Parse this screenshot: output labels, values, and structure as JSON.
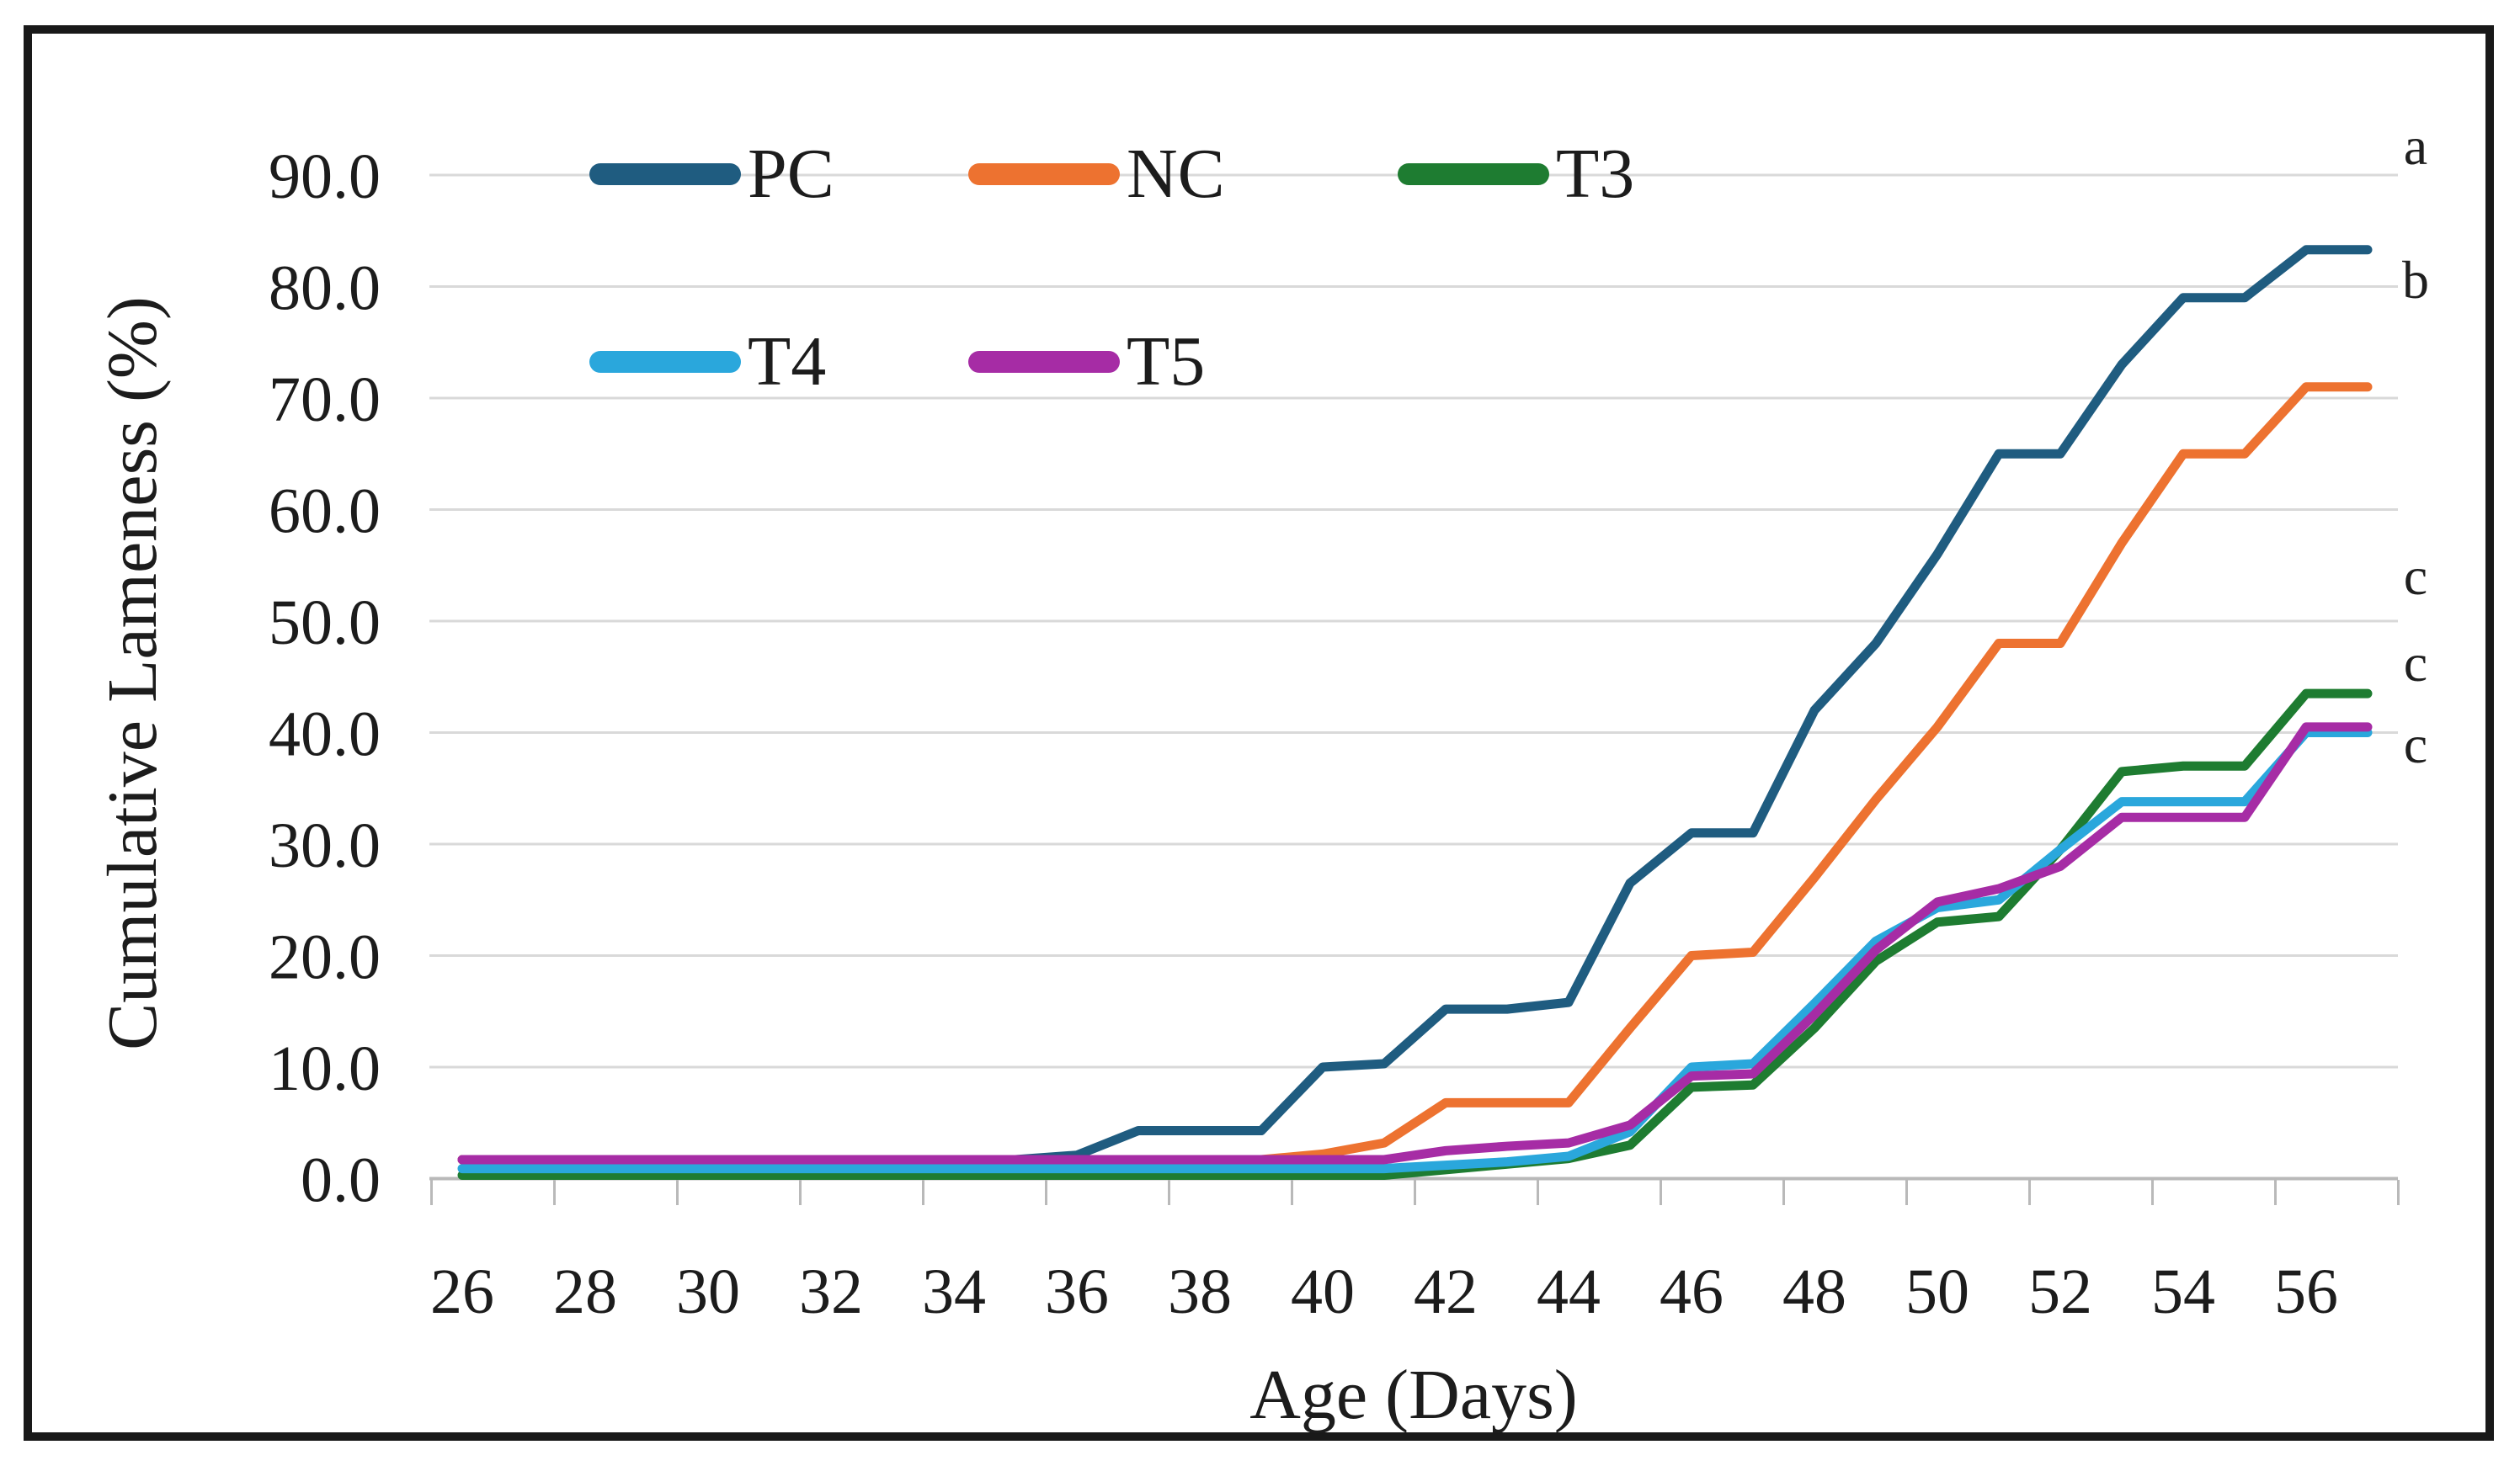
{
  "figure": {
    "description": "Stepped line chart of cumulative lameness (%) by age in days for five broiler treatment groups"
  },
  "y_axis": {
    "title": "Cumulative Lameness (%)",
    "tick_labels": [
      "0.0",
      "10.0",
      "20.0",
      "30.0",
      "40.0",
      "50.0",
      "60.0",
      "70.0",
      "80.0",
      "90.0"
    ],
    "tick_values": [
      0,
      10,
      20,
      30,
      40,
      50,
      60,
      70,
      80,
      90
    ],
    "min": 0,
    "max": 90
  },
  "x_axis": {
    "title": "Age (Days)",
    "tick_labels": [
      "26",
      "28",
      "30",
      "32",
      "34",
      "36",
      "38",
      "40",
      "42",
      "44",
      "46",
      "48",
      "50",
      "52",
      "54",
      "56"
    ],
    "tick_values": [
      26,
      28,
      30,
      32,
      34,
      36,
      38,
      40,
      42,
      44,
      46,
      48,
      50,
      52,
      54,
      56
    ],
    "min": 26,
    "max": 57
  },
  "legend": {
    "position": "inside-top-left",
    "rows": [
      [
        "PC",
        "NC",
        "T3"
      ],
      [
        "T4",
        "T5"
      ]
    ]
  },
  "annotations": [
    {
      "label": "a",
      "series": "PC",
      "value": 92.6
    },
    {
      "label": "b",
      "series": "NC",
      "value": 80.6
    },
    {
      "label": "c",
      "series": "T3",
      "value": 54.0
    },
    {
      "label": "c",
      "series": "T4",
      "value": 46.2
    },
    {
      "label": "c",
      "series": "T5",
      "value": 38.9
    }
  ],
  "chart_data": {
    "type": "line",
    "title": "",
    "xlabel": "Age (Days)",
    "ylabel": "Cumulative Lameness (%)",
    "xlim": [
      25.5,
      57.5
    ],
    "ylim": [
      0,
      90
    ],
    "grid": "horizontal",
    "x": [
      26,
      27,
      28,
      29,
      30,
      31,
      32,
      33,
      34,
      35,
      36,
      37,
      38,
      39,
      40,
      41,
      42,
      43,
      44,
      45,
      46,
      47,
      48,
      49,
      50,
      51,
      52,
      53,
      54,
      55,
      56,
      57
    ],
    "series": [
      {
        "name": "PC",
        "color": "#1F5C80",
        "values": [
          1.7,
          1.7,
          1.7,
          1.7,
          1.7,
          1.7,
          1.7,
          1.7,
          1.7,
          1.7,
          2.1,
          4.3,
          4.3,
          4.3,
          10.0,
          10.3,
          15.2,
          15.2,
          15.8,
          26.5,
          31.0,
          31.0,
          42.0,
          48.0,
          56.0,
          65.0,
          65.0,
          73.0,
          79.0,
          79.0,
          83.3,
          83.3
        ]
      },
      {
        "name": "NC",
        "color": "#ED7230",
        "values": [
          1.7,
          1.7,
          1.7,
          1.7,
          1.7,
          1.7,
          1.7,
          1.7,
          1.7,
          1.7,
          1.7,
          1.7,
          1.7,
          1.7,
          2.2,
          3.2,
          6.8,
          6.8,
          6.8,
          13.5,
          20.0,
          20.3,
          27.0,
          34.0,
          40.5,
          48.0,
          48.0,
          57.0,
          65.0,
          65.0,
          71.0,
          71.0
        ]
      },
      {
        "name": "T3",
        "color": "#1E7C31",
        "values": [
          0.3,
          0.3,
          0.3,
          0.3,
          0.3,
          0.3,
          0.3,
          0.3,
          0.3,
          0.3,
          0.3,
          0.3,
          0.3,
          0.3,
          0.3,
          0.3,
          0.8,
          1.3,
          1.8,
          3.0,
          8.2,
          8.4,
          13.5,
          19.5,
          23.0,
          23.5,
          29.5,
          36.5,
          37.0,
          37.0,
          43.5,
          43.5
        ]
      },
      {
        "name": "T4",
        "color": "#2AA7DC",
        "values": [
          0.9,
          0.9,
          0.9,
          0.9,
          0.9,
          0.9,
          0.9,
          0.9,
          0.9,
          0.9,
          0.9,
          0.9,
          0.9,
          0.9,
          0.9,
          0.9,
          1.2,
          1.5,
          2.0,
          4.2,
          10.0,
          10.3,
          15.7,
          21.3,
          24.3,
          25.0,
          29.5,
          33.8,
          33.8,
          33.8,
          40.0,
          40.0
        ]
      },
      {
        "name": "T5",
        "color": "#A62CA5",
        "values": [
          1.7,
          1.7,
          1.7,
          1.7,
          1.7,
          1.7,
          1.7,
          1.7,
          1.7,
          1.7,
          1.7,
          1.7,
          1.7,
          1.7,
          1.7,
          1.7,
          2.5,
          2.9,
          3.2,
          4.8,
          9.2,
          9.4,
          14.7,
          20.5,
          24.8,
          26.0,
          28.0,
          32.4,
          32.4,
          32.4,
          40.5,
          40.5
        ]
      }
    ]
  }
}
